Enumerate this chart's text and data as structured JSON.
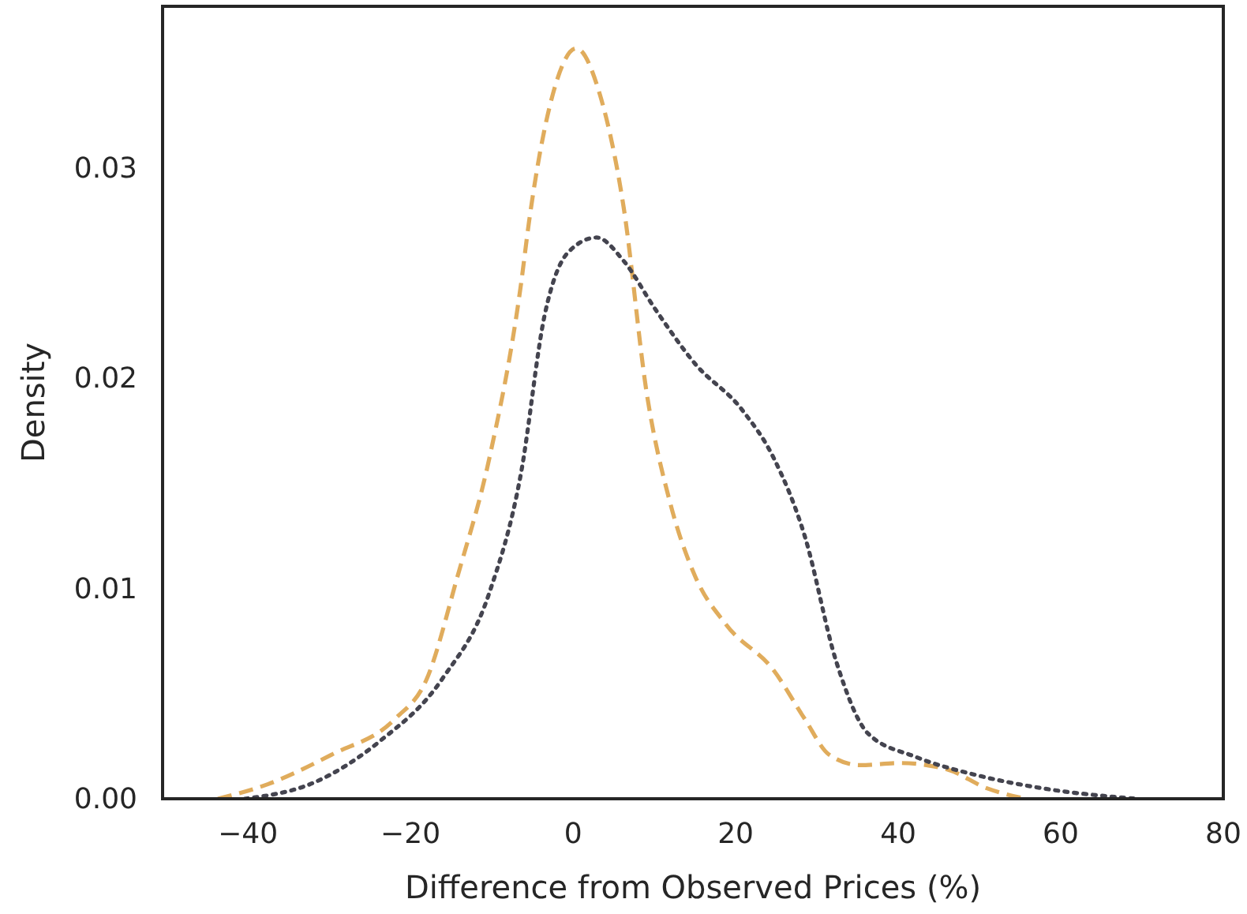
{
  "chart_data": {
    "type": "line",
    "xlabel": "Difference from Observed Prices (%)",
    "ylabel": "Density",
    "xlim": [
      -50.5,
      80
    ],
    "xticks": [
      {
        "value": -40,
        "label": "−40"
      },
      {
        "value": -20,
        "label": "−20"
      },
      0,
      20,
      40,
      60,
      80
    ],
    "ylim": [
      0,
      0.0377
    ],
    "yticks": [
      {
        "value": 0,
        "label": "0.00"
      },
      {
        "value": 0.01,
        "label": "0.01"
      },
      {
        "value": 0.02,
        "label": "0.02"
      },
      {
        "value": 0.03,
        "label": "0.03"
      }
    ],
    "grid": false,
    "marker": "none",
    "series": [
      {
        "color": "#e0ac5c",
        "line_style": "dashed",
        "x": [
          -43.7,
          -37.5,
          -29.7,
          -21.9,
          -18,
          -14.2,
          -10.3,
          -6.4,
          -5.4,
          -2.5,
          0.4,
          3.3,
          6.2,
          9.1,
          12,
          15,
          18.8,
          24.7,
          28.5,
          31.5,
          35.3,
          40.2,
          46,
          50.9,
          55.7
        ],
        "values": [
          0,
          0.0007,
          0.0021,
          0.0038,
          0.0057,
          0.0106,
          0.0162,
          0.0245,
          0.0275,
          0.0335,
          0.0357,
          0.0335,
          0.0282,
          0.0192,
          0.014,
          0.0106,
          0.0083,
          0.0061,
          0.0038,
          0.0021,
          0.0016,
          0.0017,
          0.0014,
          0.0005,
          0
        ]
      },
      {
        "color": "#44444f",
        "line_style": "dotted",
        "x": [
          -40.4,
          -31.7,
          -23.9,
          -16.1,
          -10.3,
          -6.4,
          -3.5,
          -0.6,
          2.9,
          6.2,
          10.1,
          15,
          20.8,
          24.7,
          28.5,
          32.4,
          36.3,
          42.1,
          49.9,
          57.7,
          69.3
        ],
        "values": [
          0,
          0.0008,
          0.0027,
          0.0057,
          0.0098,
          0.0155,
          0.023,
          0.026,
          0.0267,
          0.0256,
          0.0233,
          0.0207,
          0.0185,
          0.0162,
          0.0125,
          0.0065,
          0.0031,
          0.002,
          0.0011,
          0.0005,
          0
        ]
      }
    ]
  }
}
